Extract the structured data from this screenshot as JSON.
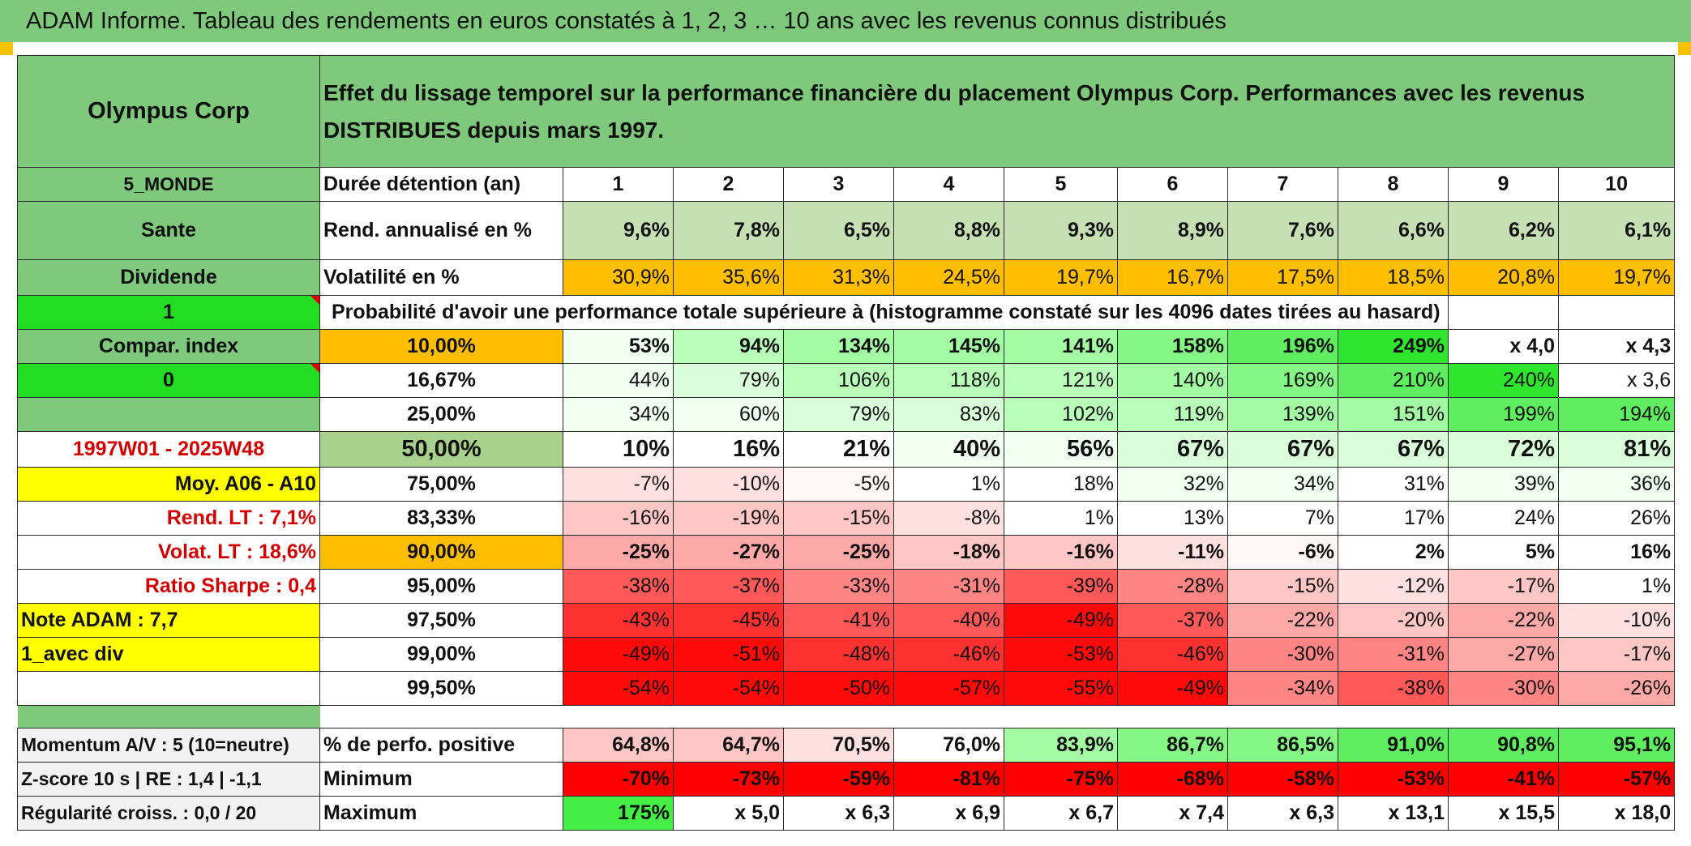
{
  "title": "ADAM Informe. Tableau des rendements en euros constatés à 1, 2, 3 … 10 ans avec les revenus connus distribués",
  "company": "Olympus Corp",
  "header_description": "Effet du lissage temporel sur la performance financière du placement Olympus Corp. Performances avec les revenus DISTRIBUES depuis mars 1997.",
  "left": {
    "region": "5_MONDE",
    "sector": "Sante",
    "dividend": "Dividende",
    "one": "1",
    "compar_index": "Compar. index",
    "zero": "0",
    "empty": "",
    "period": "1997W01 - 2025W48",
    "moy": "Moy. A06 - A10",
    "rend_lt": "Rend. LT :   7,1%",
    "volat_lt": "Volat. LT :   18,6%",
    "sharpe": "Ratio Sharpe :   0,4",
    "note": "Note ADAM : 7,7",
    "avec_div": "1_avec div"
  },
  "durations": {
    "label": "Durée détention (an)",
    "values": [
      "1",
      "2",
      "3",
      "4",
      "5",
      "6",
      "7",
      "8",
      "9",
      "10"
    ]
  },
  "rend_annualise": {
    "label": "Rend. annualisé en %",
    "values": [
      "9,6%",
      "7,8%",
      "6,5%",
      "8,8%",
      "9,3%",
      "8,9%",
      "7,6%",
      "6,6%",
      "6,2%",
      "6,1%"
    ]
  },
  "volatilite": {
    "label": "Volatilité en %",
    "values": [
      "30,9%",
      "35,6%",
      "31,3%",
      "24,5%",
      "19,7%",
      "16,7%",
      "17,5%",
      "18,5%",
      "20,8%",
      "19,7%"
    ]
  },
  "probability_caption": "Probabilité d'avoir une performance totale supérieure à (histogramme constaté sur les 4096 dates tirées au hasard)",
  "percentile_rows": [
    {
      "p": "10,00%",
      "values": [
        "53%",
        "94%",
        "134%",
        "145%",
        "141%",
        "158%",
        "196%",
        "249%",
        "x 4,0",
        "x 4,3"
      ]
    },
    {
      "p": "16,67%",
      "values": [
        "44%",
        "79%",
        "106%",
        "118%",
        "121%",
        "140%",
        "169%",
        "210%",
        "240%",
        "x 3,6"
      ]
    },
    {
      "p": "25,00%",
      "values": [
        "34%",
        "60%",
        "79%",
        "83%",
        "102%",
        "119%",
        "139%",
        "151%",
        "199%",
        "194%"
      ]
    },
    {
      "p": "50,00%",
      "values": [
        "10%",
        "16%",
        "21%",
        "40%",
        "56%",
        "67%",
        "67%",
        "67%",
        "72%",
        "81%"
      ]
    },
    {
      "p": "75,00%",
      "values": [
        "-7%",
        "-10%",
        "-5%",
        "1%",
        "18%",
        "32%",
        "34%",
        "31%",
        "39%",
        "36%"
      ]
    },
    {
      "p": "83,33%",
      "values": [
        "-16%",
        "-19%",
        "-15%",
        "-8%",
        "1%",
        "13%",
        "7%",
        "17%",
        "24%",
        "26%"
      ]
    },
    {
      "p": "90,00%",
      "values": [
        "-25%",
        "-27%",
        "-25%",
        "-18%",
        "-16%",
        "-11%",
        "-6%",
        "2%",
        "5%",
        "16%"
      ]
    },
    {
      "p": "95,00%",
      "values": [
        "-38%",
        "-37%",
        "-33%",
        "-31%",
        "-39%",
        "-28%",
        "-15%",
        "-12%",
        "-17%",
        "1%"
      ]
    },
    {
      "p": "97,50%",
      "values": [
        "-43%",
        "-45%",
        "-41%",
        "-40%",
        "-49%",
        "-37%",
        "-22%",
        "-20%",
        "-22%",
        "-10%"
      ]
    },
    {
      "p": "99,00%",
      "values": [
        "-49%",
        "-51%",
        "-48%",
        "-46%",
        "-53%",
        "-46%",
        "-30%",
        "-31%",
        "-27%",
        "-17%"
      ]
    },
    {
      "p": "99,50%",
      "values": [
        "-54%",
        "-54%",
        "-50%",
        "-57%",
        "-55%",
        "-49%",
        "-34%",
        "-38%",
        "-30%",
        "-26%"
      ]
    }
  ],
  "bottom": {
    "momentum": "Momentum A/V : 5 (10=neutre)",
    "zscore": "Z-score 10 s | RE : 1,4 | -1,1",
    "regularite": "Régularité croiss. : 0,0 / 20",
    "positive": {
      "label": "% de perfo. positive",
      "values": [
        "64,8%",
        "64,7%",
        "70,5%",
        "76,0%",
        "83,9%",
        "86,7%",
        "86,5%",
        "91,0%",
        "90,8%",
        "95,1%"
      ]
    },
    "minimum": {
      "label": "Minimum",
      "values": [
        "-70%",
        "-73%",
        "-59%",
        "-81%",
        "-75%",
        "-68%",
        "-58%",
        "-53%",
        "-41%",
        "-57%"
      ]
    },
    "maximum": {
      "label": "Maximum",
      "values": [
        "175%",
        "x 5,0",
        "x 6,3",
        "x 6,9",
        "x 6,7",
        "x 7,4",
        "x 6,3",
        "x 13,1",
        "x 15,5",
        "x 18,0"
      ]
    }
  },
  "colors": {
    "header_green": "#7ec97c",
    "bright_green": "#22dd22",
    "gold": "#ffbf00",
    "yellow": "#ffff00",
    "red": "#ff0000",
    "label_red": "#d50000"
  }
}
